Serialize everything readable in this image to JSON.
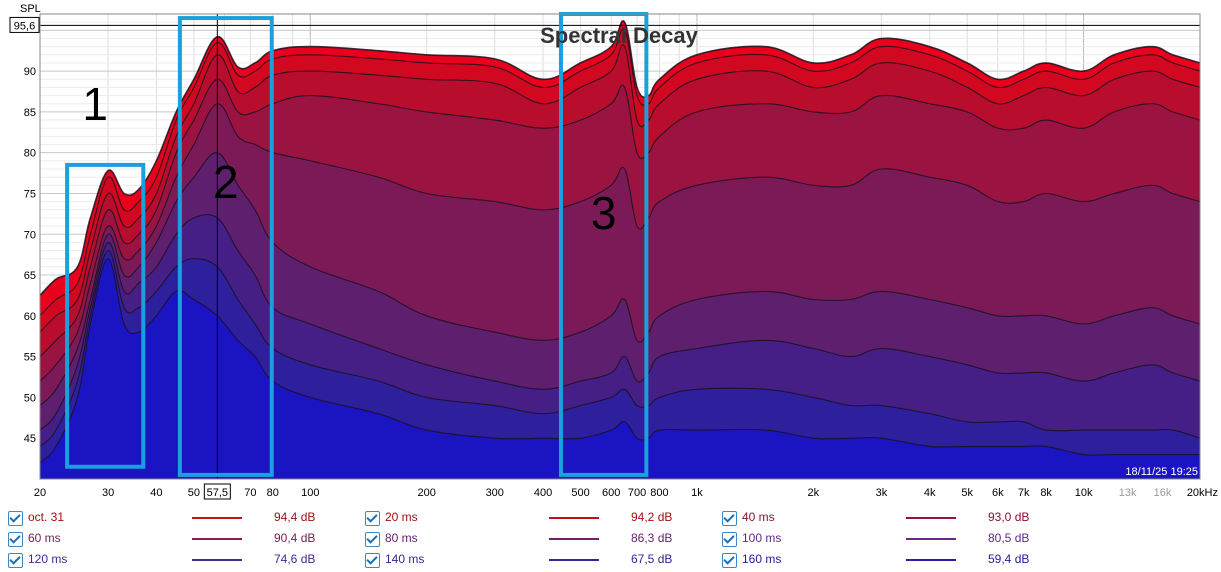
{
  "chart_data": {
    "type": "area",
    "title": "Spectral Decay",
    "ylabel": "SPL",
    "x_scale": "log",
    "xlim": [
      20,
      20000
    ],
    "ylim": [
      40,
      97
    ],
    "x_tick_labels": [
      {
        "v": 20,
        "t": "20"
      },
      {
        "v": 30,
        "t": "30"
      },
      {
        "v": 40,
        "t": "40"
      },
      {
        "v": 50,
        "t": "50"
      },
      {
        "v": 70,
        "t": "70"
      },
      {
        "v": 80,
        "t": "80"
      },
      {
        "v": 100,
        "t": "100"
      },
      {
        "v": 200,
        "t": "200"
      },
      {
        "v": 300,
        "t": "300"
      },
      {
        "v": 400,
        "t": "400"
      },
      {
        "v": 500,
        "t": "500"
      },
      {
        "v": 600,
        "t": "600"
      },
      {
        "v": 700,
        "t": "700"
      },
      {
        "v": 800,
        "t": "800"
      },
      {
        "v": 1000,
        "t": "1k"
      },
      {
        "v": 2000,
        "t": "2k"
      },
      {
        "v": 3000,
        "t": "3k"
      },
      {
        "v": 4000,
        "t": "4k"
      },
      {
        "v": 5000,
        "t": "5k"
      },
      {
        "v": 6000,
        "t": "6k"
      },
      {
        "v": 7000,
        "t": "7k"
      },
      {
        "v": 8000,
        "t": "8k"
      },
      {
        "v": 10000,
        "t": "10k"
      },
      {
        "v": 13000,
        "t": "13k"
      },
      {
        "v": 16000,
        "t": "16k"
      },
      {
        "v": 20000,
        "t": "20kHz"
      }
    ],
    "y_ticks": [
      45,
      50,
      55,
      60,
      65,
      70,
      75,
      80,
      85,
      90
    ],
    "cursor": {
      "x_value": 57.5,
      "x_label": "57,5",
      "y_value": 95.6,
      "y_label": "95,6"
    },
    "timestamp": "18/11/25 19:25",
    "annotations": [
      {
        "label": "1",
        "x_range": [
          23.5,
          37
        ],
        "y_range": [
          41.5,
          78.5
        ]
      },
      {
        "label": "2",
        "x_range": [
          46,
          79.5
        ],
        "y_range": [
          40.5,
          96.5
        ]
      },
      {
        "label": "3",
        "x_range": [
          445,
          740
        ],
        "y_range": [
          40.5,
          97
        ]
      }
    ],
    "x": [
      20,
      22,
      25,
      27,
      30,
      33,
      36,
      40,
      45,
      50,
      57.5,
      65,
      72,
      80,
      100,
      150,
      200,
      300,
      400,
      500,
      600,
      650,
      700,
      750,
      800,
      1000,
      1500,
      2000,
      2500,
      3000,
      4000,
      5000,
      6000,
      7000,
      8000,
      10000,
      12000,
      15000,
      17000,
      20000
    ],
    "series": [
      {
        "name": "oct. 31",
        "color": "#e8001c",
        "values": [
          62.5,
          64.5,
          66,
          72,
          77.8,
          75,
          75.5,
          79,
          85,
          89,
          94.2,
          90.5,
          91,
          92.5,
          93,
          92.5,
          92,
          91.5,
          89,
          91,
          93,
          96,
          88,
          87,
          89,
          92,
          93,
          91,
          92,
          94,
          93,
          91,
          89,
          90,
          91,
          90,
          92,
          93,
          92,
          91
        ]
      },
      {
        "name": "20 ms",
        "color": "#d1081f",
        "values": [
          60,
          62,
          64,
          70,
          77,
          73,
          74,
          77,
          84,
          88,
          93.5,
          89.5,
          90,
          91.5,
          92,
          91.5,
          91,
          90.5,
          88,
          90,
          92,
          95,
          87,
          86,
          88,
          91,
          92,
          90,
          91,
          93,
          92,
          90,
          88,
          89,
          90,
          89,
          91,
          92,
          91,
          90
        ]
      },
      {
        "name": "40 ms",
        "color": "#b80d2c",
        "values": [
          58,
          60,
          62,
          68,
          75,
          71,
          72,
          75,
          82,
          86,
          92,
          87.5,
          88,
          89.5,
          90,
          89.5,
          89,
          88.5,
          86,
          88,
          90,
          93,
          84,
          84,
          86,
          89,
          90,
          88,
          89,
          91,
          90,
          88,
          86,
          87,
          88,
          87,
          89,
          90,
          89,
          88
        ]
      },
      {
        "name": "60 ms",
        "color": "#9a1341",
        "values": [
          55,
          57,
          60,
          66,
          73,
          69,
          70,
          73,
          80,
          84,
          89,
          85,
          85,
          86,
          87,
          86,
          85,
          84,
          83,
          84,
          86,
          88,
          80,
          80,
          82,
          85,
          86,
          85,
          85,
          87,
          86,
          85,
          83,
          83,
          84,
          83,
          85,
          86,
          85,
          84
        ]
      },
      {
        "name": "80 ms",
        "color": "#7c1a58",
        "values": [
          52,
          54,
          58,
          64,
          71,
          67,
          68,
          71,
          77,
          81,
          86,
          82,
          81,
          80,
          79,
          77,
          75,
          74,
          73,
          74,
          76,
          78,
          71,
          72,
          74,
          76,
          77,
          76,
          76,
          78,
          77,
          76,
          74,
          74,
          75,
          74,
          75,
          76,
          75,
          74
        ]
      },
      {
        "name": "100 ms",
        "color": "#5e1f6e",
        "values": [
          49,
          51,
          56,
          62,
          70,
          65,
          66,
          69,
          74,
          77,
          80,
          76,
          73,
          69,
          66,
          63,
          60,
          58,
          57,
          58,
          60,
          62,
          57,
          58,
          60,
          62,
          63,
          62,
          62,
          63,
          62,
          61,
          60,
          60,
          60,
          59,
          60,
          61,
          60,
          59
        ]
      },
      {
        "name": "120 ms",
        "color": "#451f85",
        "values": [
          46,
          48,
          54,
          61,
          69,
          63,
          64,
          66,
          70,
          72,
          72,
          68,
          65,
          61,
          59,
          56,
          54,
          52,
          51,
          52,
          53,
          55,
          52,
          53,
          55,
          56,
          57,
          56,
          55,
          56,
          55,
          54,
          53,
          53,
          53,
          52,
          53,
          54,
          53,
          52
        ]
      },
      {
        "name": "140 ms",
        "color": "#2e1f9c",
        "values": [
          44,
          46,
          52,
          60,
          68,
          61,
          61,
          63,
          66,
          67,
          66,
          62,
          59,
          56,
          54,
          52,
          50,
          49,
          48,
          49,
          50,
          51,
          49,
          49,
          50,
          51,
          51,
          50,
          49,
          49,
          48,
          47,
          47,
          47,
          46,
          46,
          46,
          46,
          46,
          45
        ]
      },
      {
        "name": "160 ms",
        "color": "#1a14c2",
        "values": [
          42,
          44,
          50,
          59,
          67,
          59,
          58,
          60,
          63,
          62,
          60,
          57,
          55,
          52,
          50,
          48,
          46,
          45,
          45,
          45,
          46,
          47,
          45,
          45,
          46,
          46,
          46,
          45,
          45,
          45,
          44,
          44,
          44,
          44,
          44,
          43,
          43,
          43,
          43,
          43
        ]
      }
    ]
  },
  "legend": [
    {
      "label": "oct. 31",
      "value": "94,4 dB",
      "color": "#cc0f1f",
      "label_color": "#a01010"
    },
    {
      "label": "20 ms",
      "value": "94,2 dB",
      "color": "#c50c1c",
      "label_color": "#a01010"
    },
    {
      "label": "40 ms",
      "value": "93,0 dB",
      "color": "#9e1035",
      "label_color": "#8a1030"
    },
    {
      "label": "60 ms",
      "value": "90,4 dB",
      "color": "#851c55",
      "label_color": "#7a1c50"
    },
    {
      "label": "80 ms",
      "value": "86,3 dB",
      "color": "#702070",
      "label_color": "#6a2070"
    },
    {
      "label": "100 ms",
      "value": "80,5 dB",
      "color": "#6a2a86",
      "label_color": "#602a86"
    },
    {
      "label": "120 ms",
      "value": "74,6 dB",
      "color": "#4b2a90",
      "label_color": "#45288e"
    },
    {
      "label": "140 ms",
      "value": "67,5 dB",
      "color": "#332898",
      "label_color": "#302895"
    },
    {
      "label": "160 ms",
      "value": "59,4 dB",
      "color": "#241ea0",
      "label_color": "#201c98"
    }
  ]
}
